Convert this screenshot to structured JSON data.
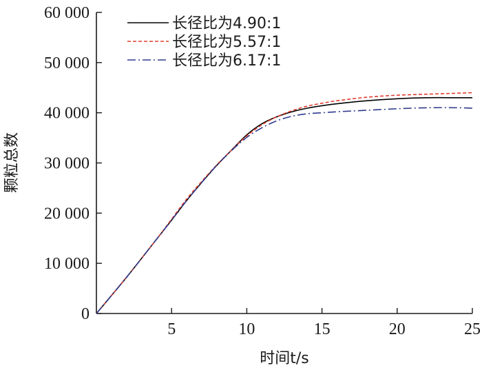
{
  "chart_data": {
    "type": "line",
    "xlabel": "时间t/s",
    "ylabel": "颗粒总数",
    "xlim": [
      0,
      25
    ],
    "ylim": [
      0,
      60000
    ],
    "xticks": [
      5,
      10,
      15,
      20,
      25
    ],
    "xtick_labels": [
      "5",
      "10",
      "15",
      "20",
      "25"
    ],
    "yticks": [
      0,
      10000,
      20000,
      30000,
      40000,
      50000,
      60000
    ],
    "ytick_labels": [
      "0",
      "10 000",
      "20 000",
      "30 000",
      "40 000",
      "50 000",
      "60 000"
    ],
    "grid": false,
    "legend_position": "top-left",
    "series": [
      {
        "name": "长径比为4.90:1",
        "color": "#000000",
        "dash": "solid",
        "x": [
          0,
          2,
          4,
          5,
          6,
          7,
          8,
          9,
          10,
          11,
          12,
          13,
          14,
          15,
          16,
          18,
          20,
          22,
          24,
          25
        ],
        "y": [
          0,
          7200,
          14800,
          18600,
          22500,
          26100,
          29500,
          32600,
          35600,
          37800,
          39200,
          40200,
          40900,
          41400,
          41800,
          42400,
          42800,
          43000,
          43000,
          43000
        ]
      },
      {
        "name": "长径比为5.57:1",
        "color": "#e03c2e",
        "dash": "dashed",
        "x": [
          0,
          2,
          4,
          5,
          6,
          7,
          8,
          9,
          10,
          11,
          12,
          13,
          14,
          15,
          16,
          18,
          20,
          22,
          24,
          25
        ],
        "y": [
          0,
          7200,
          14800,
          18800,
          22800,
          26300,
          29600,
          32600,
          35400,
          37600,
          39200,
          40400,
          41300,
          41900,
          42400,
          43100,
          43500,
          43700,
          43900,
          44000
        ]
      },
      {
        "name": "长径比为6.17:1",
        "color": "#2e3a8c",
        "dash": "dashdot",
        "x": [
          0,
          2,
          4,
          5,
          6,
          7,
          8,
          9,
          10,
          11,
          12,
          13,
          14,
          15,
          16,
          18,
          20,
          22,
          24,
          25
        ],
        "y": [
          0,
          7200,
          14800,
          18600,
          22500,
          26100,
          29500,
          32500,
          35100,
          37000,
          38400,
          39300,
          39800,
          40000,
          40200,
          40500,
          40800,
          41000,
          41000,
          40900
        ]
      }
    ]
  }
}
